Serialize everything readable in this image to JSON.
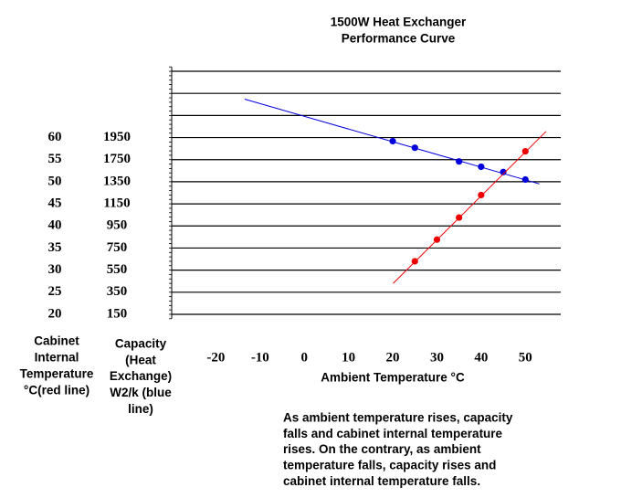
{
  "chart_data": {
    "type": "scatter",
    "title_lines": [
      "1500W Heat Exchanger",
      "Performance Curve"
    ],
    "xlabel": "Ambient Temperature °C",
    "ylabel_lines": [
      "Cabinet",
      "Internal",
      "Temperature",
      "°C(red line)"
    ],
    "y2label_lines": [
      "Capacity",
      "(Heat",
      "Exchange)",
      "W2/k (blue",
      "line)"
    ],
    "note_lines": [
      "As ambient temperature rises, capacity",
      "falls and cabinet internal temperature",
      "rises. On the contrary, as ambient",
      "temperature falls, capacity rises and",
      "cabinet internal temperature falls."
    ],
    "xlim": [
      -30,
      58
    ],
    "xticks": [
      -20,
      -10,
      0,
      10,
      20,
      30,
      40,
      50
    ],
    "ylim": [
      19,
      76
    ],
    "yticks": [
      60,
      55,
      50,
      45,
      40,
      35,
      30,
      25,
      20
    ],
    "y2_labels": [
      "1950",
      "1750",
      "1350",
      "1150",
      "950",
      "750",
      "550",
      "350",
      "150"
    ],
    "y_gridlines": [
      20,
      25,
      30,
      35,
      40,
      45,
      50,
      55,
      60,
      65,
      70,
      75
    ],
    "y_minor_tick_step": 1,
    "series": [
      {
        "name": "Capacity",
        "color": "#0000dd",
        "x": [
          20,
          25,
          35,
          40,
          45,
          50
        ],
        "values": [
          59.2,
          57.7,
          54.6,
          53.4,
          52.2,
          50.5
        ],
        "line": {
          "x": [
            -13.5,
            53.2
          ],
          "values": [
            68.7,
            49.5
          ]
        }
      },
      {
        "name": "Cabinet Internal Temperature",
        "color": "#ee0000",
        "x": [
          25,
          30,
          35,
          40,
          50
        ],
        "values": [
          32.0,
          36.9,
          41.9,
          47.0,
          56.9
        ],
        "line": {
          "x": [
            20.1,
            54.7
          ],
          "values": [
            27.0,
            61.4
          ]
        }
      }
    ]
  }
}
